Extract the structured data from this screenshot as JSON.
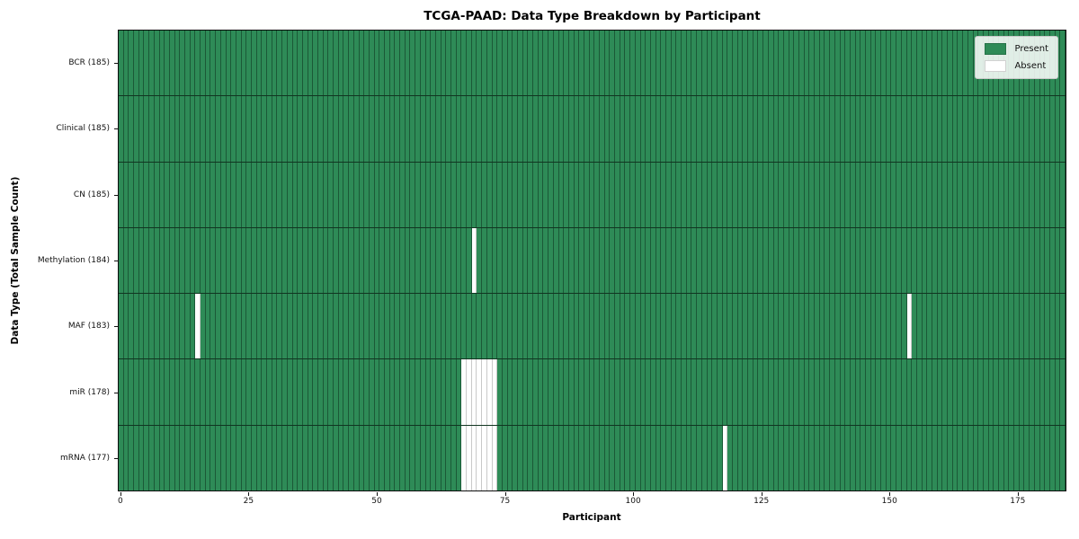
{
  "chart_data": {
    "type": "heatmap",
    "title": "TCGA-PAAD: Data Type Breakdown by Participant",
    "xlabel": "Participant",
    "ylabel": "Data Type (Total Sample Count)",
    "n_participants": 185,
    "x_axis": {
      "ticks": [
        0,
        25,
        50,
        75,
        100,
        125,
        150,
        175
      ],
      "range": [
        -0.5,
        184.5
      ]
    },
    "colors": {
      "present": "#2e8b57",
      "absent": "#ffffff",
      "cell_edge_present": "rgba(8,40,24,0.5)",
      "cell_edge_absent": "#c9c9c9",
      "row_separator": "rgba(0,0,0,0.62)",
      "spine": "#0d0d0d"
    },
    "legend": {
      "position": "upper right",
      "items": [
        {
          "label": "Present",
          "color": "#2e8b57"
        },
        {
          "label": "Absent",
          "color": "#ffffff"
        }
      ]
    },
    "rows": [
      {
        "name": "BCR",
        "label": "BCR (185)",
        "present": 185,
        "absent_participants": []
      },
      {
        "name": "Clinical",
        "label": "Clinical (185)",
        "present": 185,
        "absent_participants": []
      },
      {
        "name": "CN",
        "label": "CN (185)",
        "present": 185,
        "absent_participants": []
      },
      {
        "name": "Methylation",
        "label": "Methylation (184)",
        "present": 184,
        "absent_participants": [
          69
        ]
      },
      {
        "name": "MAF",
        "label": "MAF (183)",
        "present": 183,
        "absent_participants": [
          15,
          154
        ]
      },
      {
        "name": "miR",
        "label": "miR (178)",
        "present": 178,
        "absent_participants": [
          67,
          68,
          69,
          70,
          71,
          72,
          73
        ]
      },
      {
        "name": "mRNA",
        "label": "mRNA (177)",
        "present": 177,
        "absent_participants": [
          67,
          68,
          69,
          70,
          71,
          72,
          73,
          118
        ]
      }
    ]
  }
}
